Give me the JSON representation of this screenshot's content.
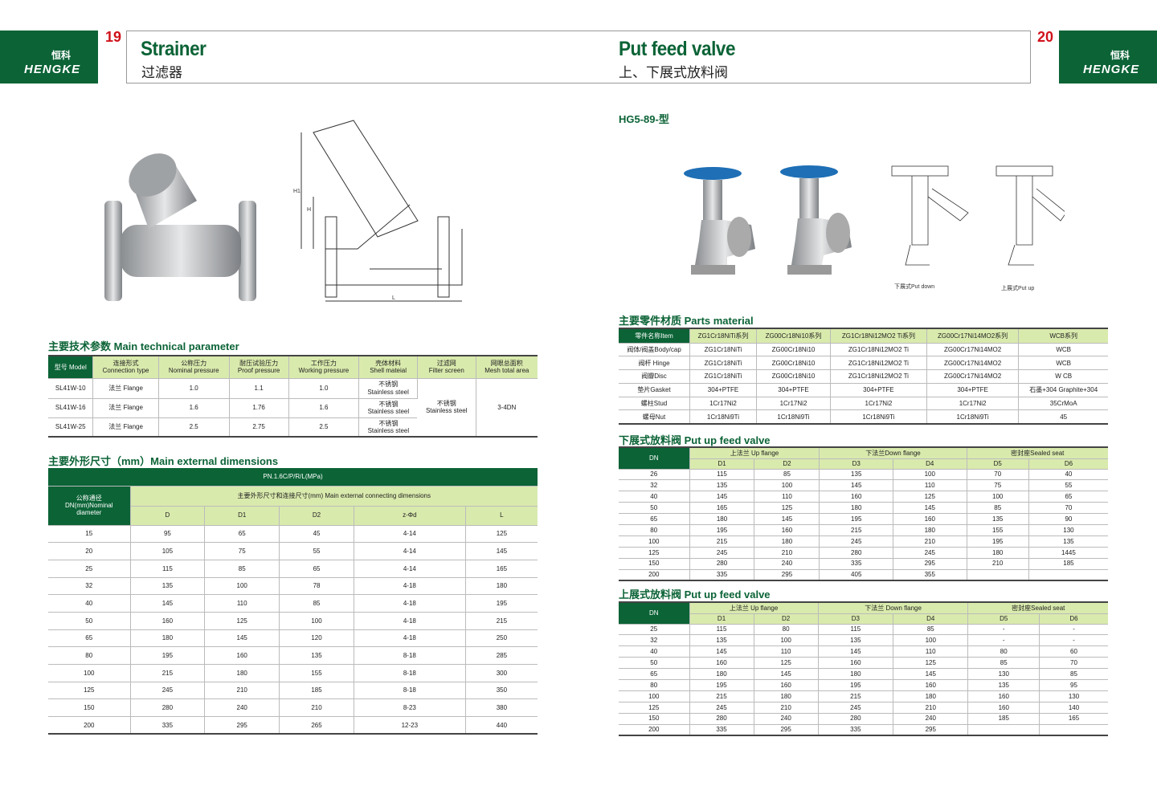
{
  "left": {
    "logo_text": "HENGKE",
    "logo_cn": "恒科",
    "page_number": "19",
    "title": "Strainer",
    "subtitle": "过滤器",
    "drawing_labels": {
      "h1": "H1",
      "h": "H",
      "l": "L"
    },
    "tech_section": "主要技术参数 Main technical parameter",
    "tech_table": {
      "headers": [
        "型号 Model",
        "连接形式\nConnection type",
        "公称压力\nNominal pressure",
        "耐压试验压力\nProof pressure",
        "工作压力\nWorking pressure",
        "壳体材料\nShell mateial",
        "过滤网\nFilter screen",
        "网眼总面积\nMesh total area"
      ],
      "rows": [
        [
          "SL41W-10",
          "法兰 Flange",
          "1.0",
          "1.1",
          "1.0",
          "不锈钢\nStainless steel"
        ],
        [
          "SL41W-16",
          "法兰 Flange",
          "1.6",
          "1.76",
          "1.6",
          "不锈钢\nStainless steel"
        ],
        [
          "SL41W-25",
          "法兰 Flange",
          "2.5",
          "2.75",
          "2.5",
          "不锈钢\nStainless steel"
        ]
      ],
      "filter_screen": "不锈钢\nStainless steel",
      "mesh_area": "3-4DN"
    },
    "dim_section": "主要外形尺寸（mm）Main external dimensions",
    "dim_table": {
      "pressure": "PN.1.6C/P/R/L(MPa)",
      "dn_header": "公称通径\nDN(mm)Nominal\ndiameter",
      "group_header": "主要外形尺寸和连接尺寸(mm) Main external connecting dimensions",
      "columns": [
        "D",
        "D1",
        "D2",
        "z-Φd",
        "L"
      ],
      "rows": [
        [
          "15",
          "95",
          "65",
          "45",
          "4-14",
          "125"
        ],
        [
          "20",
          "105",
          "75",
          "55",
          "4-14",
          "145"
        ],
        [
          "25",
          "115",
          "85",
          "65",
          "4-14",
          "165"
        ],
        [
          "32",
          "135",
          "100",
          "78",
          "4-18",
          "180"
        ],
        [
          "40",
          "145",
          "110",
          "85",
          "4-18",
          "195"
        ],
        [
          "50",
          "160",
          "125",
          "100",
          "4-18",
          "215"
        ],
        [
          "65",
          "180",
          "145",
          "120",
          "4-18",
          "250"
        ],
        [
          "80",
          "195",
          "160",
          "135",
          "8-18",
          "285"
        ],
        [
          "100",
          "215",
          "180",
          "155",
          "8-18",
          "300"
        ],
        [
          "125",
          "245",
          "210",
          "185",
          "8-18",
          "350"
        ],
        [
          "150",
          "280",
          "240",
          "210",
          "8-23",
          "380"
        ],
        [
          "200",
          "335",
          "295",
          "265",
          "12-23",
          "440"
        ]
      ]
    }
  },
  "right": {
    "logo_text": "HENGKE",
    "logo_cn": "恒科",
    "page_number": "20",
    "title": "Put feed valve",
    "subtitle": "上、下展式放料阀",
    "model": "HG5-89-型",
    "caption_down": "下展式Put down",
    "caption_up": "上展式Put up",
    "parts_section": "主要零件材质 Parts material",
    "parts_table": {
      "headers": [
        "零件名称Item",
        "ZG1Cr18NiTi系列",
        "ZG00Cr18Ni10系列",
        "ZG1Cr18Ni12MO2 Ti系列",
        "ZG00Cr17Ni14MO2系列",
        "WCB系列"
      ],
      "rows": [
        [
          "阀体/阀盖Body/cap",
          "ZG1Cr18NiTi",
          "ZG00Cr18Ni10",
          "ZG1Cr18Ni12MO2 Ti",
          "ZG00Cr17Ni14MO2",
          "WCB"
        ],
        [
          "阀杆 Hinge",
          "ZG1Cr18NiTi",
          "ZG00Cr18Ni10",
          "ZG1Cr18Ni12MO2 Ti",
          "ZG00Cr17Ni14MO2",
          "WCB"
        ],
        [
          "阀瓣Disc",
          "ZG1Cr18NiTi",
          "ZG00Cr18Ni10",
          "ZG1Cr18Ni12MO2 Ti",
          "ZG00Cr17Ni14MO2",
          "W CB"
        ],
        [
          "垫片Gasket",
          "304+PTFE",
          "304+PTFE",
          "304+PTFE",
          "304+PTFE",
          "石墨+304 Graphite+304"
        ],
        [
          "螺柱Stud",
          "1Cr17Ni2",
          "1Cr17Ni2",
          "1Cr17Ni2",
          "1Cr17Ni2",
          "35CrMoA"
        ],
        [
          "螺母Nut",
          "1Cr18Ni9Ti",
          "1Cr18Ni9Ti",
          "1Cr18Ni9Ti",
          "1Cr18Ni9Ti",
          "45"
        ]
      ]
    },
    "down_section": "下展式放料阀 Put up feed valve",
    "down_table": {
      "dn": "DN",
      "groups": [
        "上法兰 Up flange",
        "下法兰Down flange",
        "密封座Sealed seat"
      ],
      "columns": [
        "D1",
        "D2",
        "D3",
        "D4",
        "D5",
        "D6"
      ],
      "rows": [
        [
          "26",
          "115",
          "85",
          "135",
          "100",
          "70",
          "40"
        ],
        [
          "32",
          "135",
          "100",
          "145",
          "110",
          "75",
          "55"
        ],
        [
          "40",
          "145",
          "110",
          "160",
          "125",
          "100",
          "65"
        ],
        [
          "50",
          "165",
          "125",
          "180",
          "145",
          "85",
          "70"
        ],
        [
          "65",
          "180",
          "145",
          "195",
          "160",
          "135",
          "90"
        ],
        [
          "80",
          "195",
          "160",
          "215",
          "180",
          "155",
          "130"
        ],
        [
          "100",
          "215",
          "180",
          "245",
          "210",
          "195",
          "135"
        ],
        [
          "125",
          "245",
          "210",
          "280",
          "245",
          "180",
          "1445"
        ],
        [
          "150",
          "280",
          "240",
          "335",
          "295",
          "210",
          "185"
        ],
        [
          "200",
          "335",
          "295",
          "405",
          "355",
          "",
          ""
        ]
      ]
    },
    "up_section": "上展式放料阀 Put up feed valve",
    "up_table": {
      "dn": "DN",
      "groups": [
        "上法兰 Up flange",
        "下法兰 Down flange",
        "密封座Sealed seat"
      ],
      "columns": [
        "D1",
        "D2",
        "D3",
        "D4",
        "D5",
        "D6"
      ],
      "rows": [
        [
          "25",
          "115",
          "80",
          "115",
          "85",
          "-",
          "-"
        ],
        [
          "32",
          "135",
          "100",
          "135",
          "100",
          "-",
          "-"
        ],
        [
          "40",
          "145",
          "110",
          "145",
          "110",
          "80",
          "60"
        ],
        [
          "50",
          "160",
          "125",
          "160",
          "125",
          "85",
          "70"
        ],
        [
          "65",
          "180",
          "145",
          "180",
          "145",
          "130",
          "85"
        ],
        [
          "80",
          "195",
          "160",
          "195",
          "160",
          "135",
          "95"
        ],
        [
          "100",
          "215",
          "180",
          "215",
          "180",
          "160",
          "130"
        ],
        [
          "125",
          "245",
          "210",
          "245",
          "210",
          "160",
          "140"
        ],
        [
          "150",
          "280",
          "240",
          "280",
          "240",
          "185",
          "165"
        ],
        [
          "200",
          "335",
          "295",
          "335",
          "295",
          "",
          ""
        ]
      ]
    }
  },
  "colors": {
    "brand_green": "#0b6336",
    "header_light": "#d9eaad",
    "page_number_red": "#d0121b",
    "handwheel_blue": "#1e6fb5"
  }
}
